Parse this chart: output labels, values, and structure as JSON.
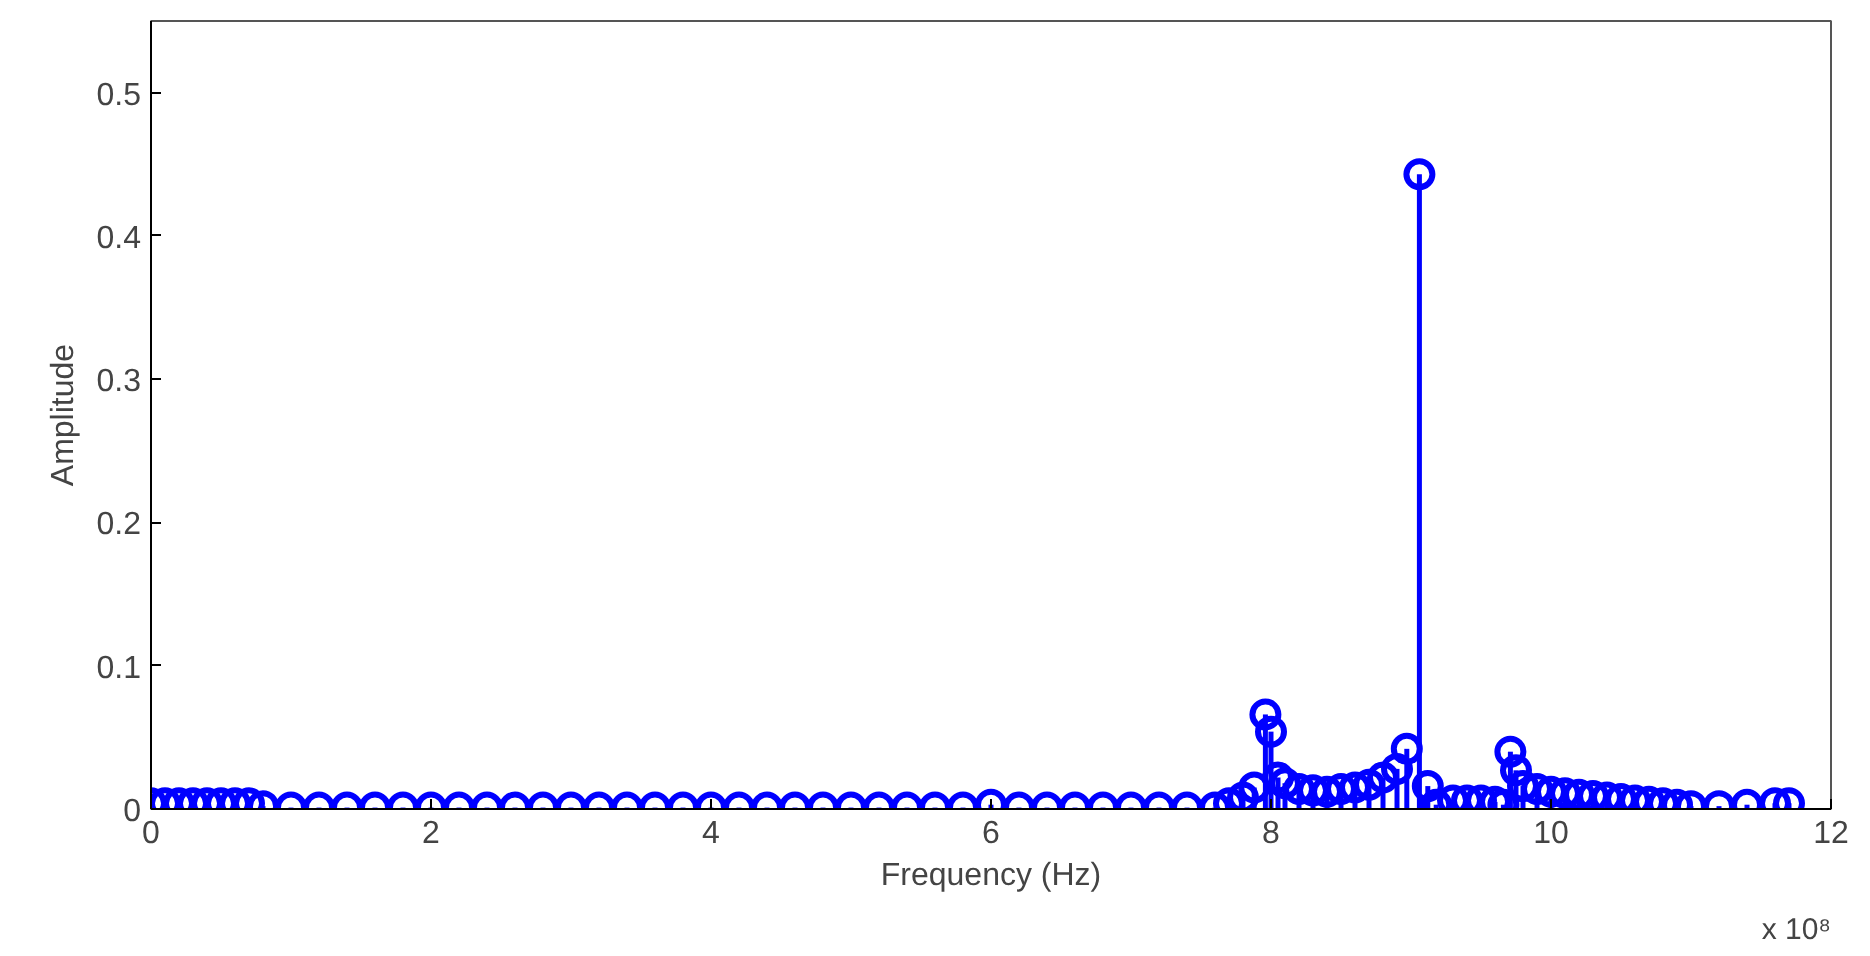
{
  "chart_data": {
    "type": "lollipop",
    "xlabel": "Frequency (Hz)",
    "ylabel": "Amplitude",
    "annotations": [
      "x 10⁸"
    ],
    "xlim": [
      0,
      12
    ],
    "xticks": [
      0,
      2,
      4,
      6,
      8,
      10,
      12
    ],
    "ylim": [
      0,
      0.55
    ],
    "yticks": [
      0,
      0.1,
      0.2,
      0.3,
      0.4,
      0.5
    ],
    "grid": false,
    "marker": "circle",
    "series": [
      {
        "color": "#0000ff",
        "x": [
          0.0,
          0.1,
          0.2,
          0.3,
          0.4,
          0.5,
          0.6,
          0.7,
          0.8,
          1.0,
          1.2,
          1.4,
          1.6,
          1.8,
          2.0,
          2.2,
          2.4,
          2.6,
          2.8,
          3.0,
          3.2,
          3.4,
          3.6,
          3.8,
          4.0,
          4.2,
          4.4,
          4.6,
          4.8,
          5.0,
          5.2,
          5.4,
          5.6,
          5.8,
          6.0,
          6.2,
          6.4,
          6.6,
          6.8,
          7.0,
          7.2,
          7.4,
          7.6,
          7.7,
          7.8,
          7.88,
          7.96,
          8.0,
          8.05,
          8.1,
          8.2,
          8.3,
          8.4,
          8.5,
          8.6,
          8.7,
          8.8,
          8.9,
          8.97,
          9.06,
          9.12,
          9.18,
          9.3,
          9.4,
          9.5,
          9.6,
          9.66,
          9.71,
          9.75,
          9.8,
          9.9,
          10.0,
          10.1,
          10.2,
          10.3,
          10.4,
          10.5,
          10.6,
          10.7,
          10.8,
          10.9,
          11.0,
          11.2,
          11.4,
          11.6,
          11.7
        ],
        "values": [
          0.004,
          0.004,
          0.004,
          0.004,
          0.004,
          0.004,
          0.004,
          0.004,
          0.002,
          0.001,
          0.001,
          0.001,
          0.001,
          0.001,
          0.001,
          0.001,
          0.001,
          0.001,
          0.001,
          0.001,
          0.001,
          0.001,
          0.001,
          0.001,
          0.001,
          0.001,
          0.001,
          0.001,
          0.001,
          0.001,
          0.001,
          0.001,
          0.001,
          0.001,
          0.003,
          0.001,
          0.001,
          0.001,
          0.001,
          0.001,
          0.001,
          0.001,
          0.001,
          0.004,
          0.008,
          0.015,
          0.066,
          0.054,
          0.022,
          0.018,
          0.014,
          0.013,
          0.012,
          0.014,
          0.015,
          0.017,
          0.022,
          0.028,
          0.042,
          0.443,
          0.016,
          0.003,
          0.006,
          0.006,
          0.006,
          0.005,
          0.003,
          0.04,
          0.027,
          0.016,
          0.014,
          0.012,
          0.011,
          0.01,
          0.009,
          0.008,
          0.007,
          0.006,
          0.005,
          0.004,
          0.003,
          0.002,
          0.002,
          0.003,
          0.004,
          0.004
        ]
      }
    ]
  }
}
